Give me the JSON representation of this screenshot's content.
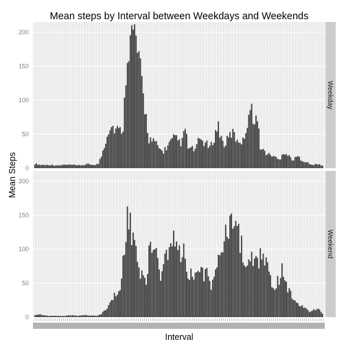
{
  "colors": {
    "panel_background": "#ebebeb",
    "grid_major": "#ffffff",
    "grid_minor": "#f5f5f5",
    "bar_fill": "#333333",
    "strip_background": "#cccccc",
    "tick_text": "#7f7f7f"
  },
  "chart_data": {
    "type": "bar",
    "title": "Mean steps by Interval between Weekdays and Weekends",
    "xlabel": "Interval",
    "ylabel": "Mean Steps",
    "ylim": [
      0,
      215
    ],
    "y_ticks": [
      0,
      50,
      100,
      150,
      200
    ],
    "y_tick_labels": [
      "0",
      "50",
      "100",
      "150",
      "200"
    ],
    "grid": true,
    "legend": "none",
    "facet": "rows",
    "x_tick_labels": "crowded, illegible",
    "x_values_note": "x = 5-minute intervals in HHMM form, 0 to 2355 (288 intervals); heights sampled every ~5 intervals",
    "x": [
      0,
      25,
      50,
      115,
      140,
      205,
      230,
      255,
      320,
      345,
      410,
      435,
      500,
      525,
      550,
      615,
      640,
      705,
      730,
      755,
      820,
      845,
      910,
      935,
      1000,
      1025,
      1050,
      1115,
      1140,
      1205,
      1230,
      1255,
      1320,
      1345,
      1410,
      1435,
      1500,
      1525,
      1550,
      1615,
      1640,
      1705,
      1730,
      1755,
      1820,
      1845,
      1910,
      1935,
      2000,
      2025,
      2050,
      2115,
      2140,
      2205,
      2230,
      2255,
      2320,
      2345
    ],
    "series": [
      {
        "name": "Weekday",
        "values": [
          7,
          6,
          5,
          5,
          5,
          4,
          5,
          5,
          5,
          4,
          5,
          6,
          5,
          7,
          20,
          65,
          62,
          55,
          68,
          185,
          205,
          170,
          80,
          45,
          35,
          28,
          25,
          40,
          45,
          38,
          60,
          30,
          28,
          45,
          35,
          30,
          65,
          45,
          35,
          55,
          45,
          40,
          65,
          90,
          70,
          30,
          20,
          20,
          12,
          25,
          22,
          12,
          18,
          10,
          8,
          5,
          6,
          4
        ]
      },
      {
        "name": "Weekend",
        "values": [
          3,
          4,
          4,
          2,
          2,
          2,
          2,
          2,
          3,
          2,
          3,
          3,
          2,
          3,
          5,
          20,
          30,
          40,
          100,
          150,
          120,
          80,
          50,
          100,
          95,
          60,
          75,
          120,
          125,
          95,
          100,
          60,
          70,
          65,
          65,
          45,
          90,
          110,
          120,
          135,
          140,
          95,
          70,
          100,
          80,
          100,
          85,
          40,
          60,
          75,
          50,
          25,
          20,
          15,
          10,
          8,
          15,
          5
        ]
      }
    ]
  }
}
